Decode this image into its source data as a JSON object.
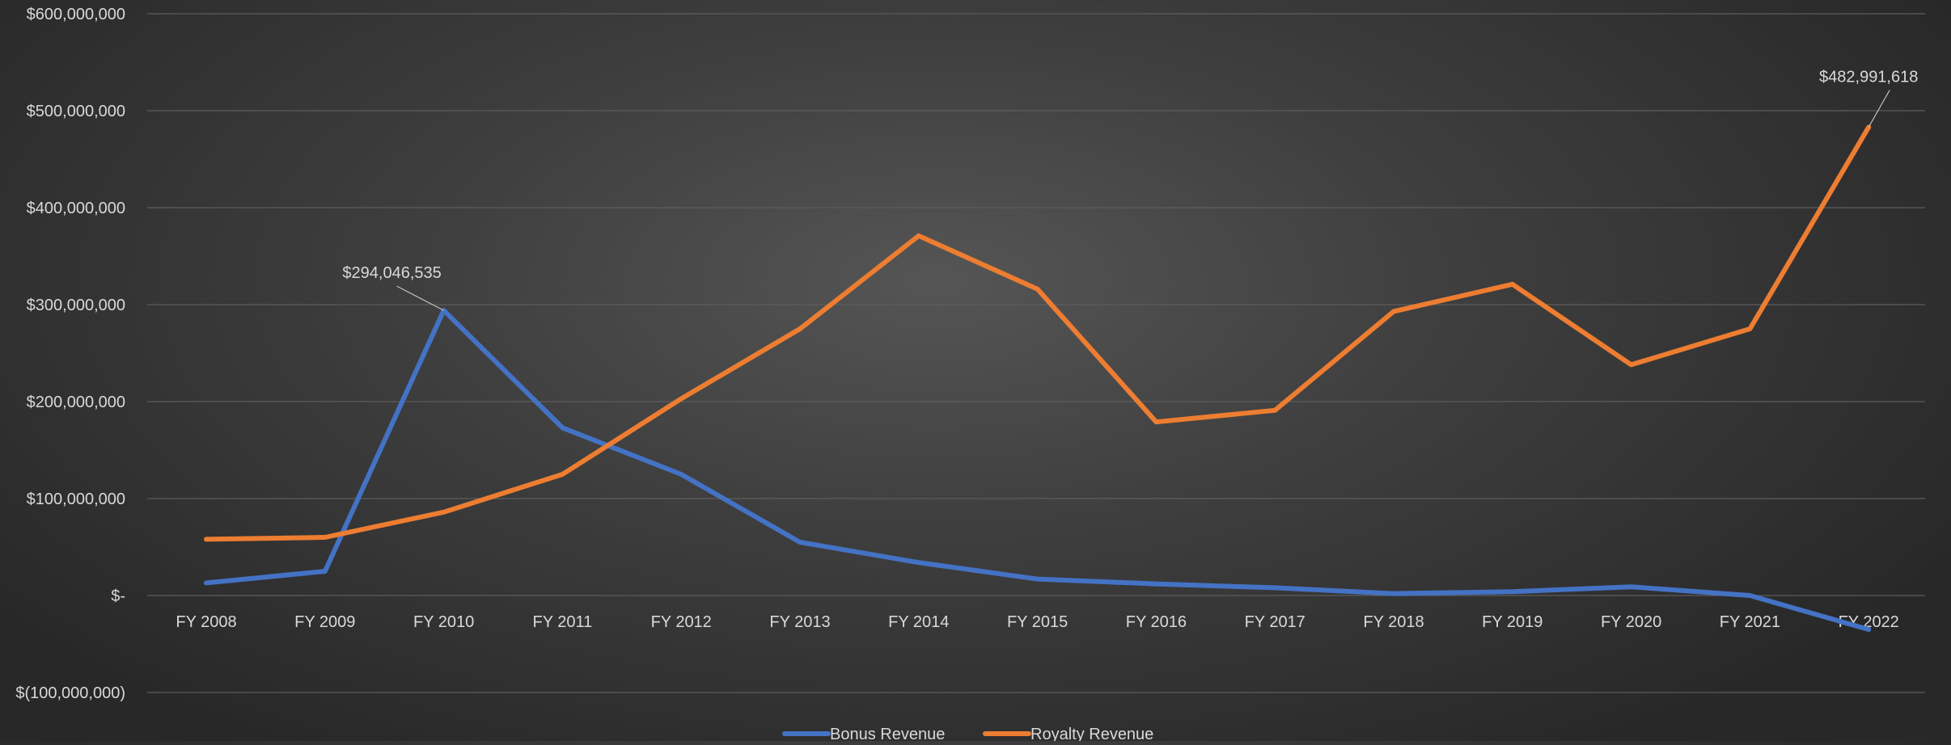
{
  "chart_data": {
    "type": "line",
    "categories": [
      "FY 2008",
      "FY 2009",
      "FY 2010",
      "FY 2011",
      "FY 2012",
      "FY 2013",
      "FY 2014",
      "FY 2015",
      "FY 2016",
      "FY 2017",
      "FY 2018",
      "FY 2019",
      "FY 2020",
      "FY 2021",
      "FY 2022"
    ],
    "series": [
      {
        "name": "Bonus Revenue",
        "color": "#4472c4",
        "values": [
          13000000,
          25000000,
          294046535,
          173000000,
          125000000,
          55000000,
          34000000,
          17000000,
          12000000,
          8000000,
          2000000,
          4000000,
          9000000,
          0,
          -35000000
        ]
      },
      {
        "name": "Royalty Revenue",
        "color": "#ed7d31",
        "values": [
          58000000,
          60000000,
          86000000,
          125000000,
          203000000,
          275000000,
          371000000,
          316000000,
          179000000,
          191000000,
          293000000,
          321000000,
          238000000,
          275000000,
          482991618
        ]
      }
    ],
    "ylim": [
      -100000000,
      600000000
    ],
    "ytick_labels": [
      "$(100,000,000)",
      "$-",
      "$100,000,000",
      "$200,000,000",
      "$300,000,000",
      "$400,000,000",
      "$500,000,000",
      "$600,000,000"
    ],
    "data_labels": [
      {
        "series": 0,
        "index": 2,
        "text": "$294,046,535"
      },
      {
        "series": 1,
        "index": 14,
        "text": "$482,991,618"
      }
    ],
    "title": "",
    "xlabel": "",
    "ylabel": "",
    "grid": true,
    "legend": "bottom-center"
  }
}
